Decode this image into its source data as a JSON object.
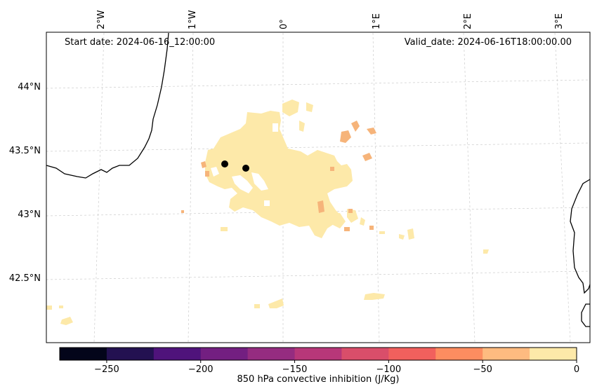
{
  "map": {
    "start_date": "Start date: 2024-06-16_12:00:00",
    "valid_date": "Valid_date: 2024-06-16T18:00:00.00",
    "lon_labels": [
      "2°W",
      "1°W",
      "0°",
      "1°E",
      "2°E",
      "3°E"
    ],
    "lat_labels": [
      "44°N",
      "43.5°N",
      "43°N",
      "42.5°N"
    ],
    "field_color": "#fde9a9",
    "field_accent_color": "#f6b47a",
    "station_color": "#000000",
    "coastline_color": "#000000"
  },
  "colorbar": {
    "label": "850 hPa convective inhibition (J/Kg)",
    "ticks": [
      "−250",
      "−200",
      "−150",
      "−100",
      "−50",
      "0"
    ],
    "range": [
      -275,
      0
    ],
    "colors": [
      "#03051a",
      "#231151",
      "#4f137b",
      "#731f81",
      "#952c80",
      "#b73779",
      "#d94e6a",
      "#f1605d",
      "#fd8d60",
      "#febb80",
      "#fde9a9"
    ]
  }
}
